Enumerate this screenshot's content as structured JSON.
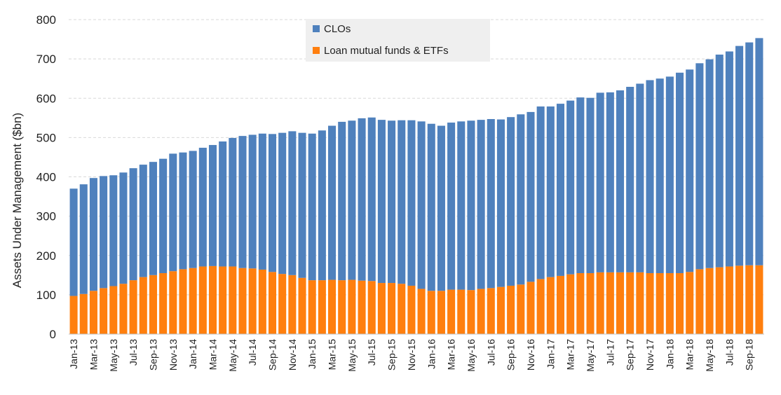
{
  "chart_data": {
    "type": "bar",
    "stacked": true,
    "title": "",
    "xlabel": "",
    "ylabel": "Assets Under Management ($bn)",
    "ylim": [
      0,
      800
    ],
    "yticks": [
      0,
      100,
      200,
      300,
      400,
      500,
      600,
      700,
      800
    ],
    "grid": true,
    "legend_position": "top-center",
    "categories": [
      "Jan-13",
      "Feb-13",
      "Mar-13",
      "Apr-13",
      "May-13",
      "Jun-13",
      "Jul-13",
      "Aug-13",
      "Sep-13",
      "Oct-13",
      "Nov-13",
      "Dec-13",
      "Jan-14",
      "Feb-14",
      "Mar-14",
      "Apr-14",
      "May-14",
      "Jun-14",
      "Jul-14",
      "Aug-14",
      "Sep-14",
      "Oct-14",
      "Nov-14",
      "Dec-14",
      "Jan-15",
      "Feb-15",
      "Mar-15",
      "Apr-15",
      "May-15",
      "Jun-15",
      "Jul-15",
      "Aug-15",
      "Sep-15",
      "Oct-15",
      "Nov-15",
      "Dec-15",
      "Jan-16",
      "Feb-16",
      "Mar-16",
      "Apr-16",
      "May-16",
      "Jun-16",
      "Jul-16",
      "Aug-16",
      "Sep-16",
      "Oct-16",
      "Nov-16",
      "Dec-16",
      "Jan-17",
      "Feb-17",
      "Mar-17",
      "Apr-17",
      "May-17",
      "Jun-17",
      "Jul-17",
      "Aug-17",
      "Sep-17",
      "Oct-17",
      "Nov-17",
      "Dec-17",
      "Jan-18",
      "Feb-18",
      "Mar-18",
      "Apr-18",
      "May-18",
      "Jun-18",
      "Jul-18",
      "Aug-18",
      "Sep-18",
      "Oct-18"
    ],
    "xtick_labels": [
      "Jan-13",
      "Mar-13",
      "May-13",
      "Jul-13",
      "Sep-13",
      "Nov-13",
      "Jan-14",
      "Mar-14",
      "May-14",
      "Jul-14",
      "Sep-14",
      "Nov-14",
      "Jan-15",
      "Mar-15",
      "May-15",
      "Jul-15",
      "Sep-15",
      "Nov-15",
      "Jan-16",
      "Mar-16",
      "May-16",
      "Jul-16",
      "Sep-16",
      "Nov-16",
      "Jan-17",
      "Mar-17",
      "May-17",
      "Jul-17",
      "Sep-17",
      "Nov-17",
      "Jan-18",
      "Mar-18",
      "May-18",
      "Jul-18",
      "Sep-18"
    ],
    "series": [
      {
        "name": "Loan mutual funds & ETFs",
        "color": "#FF7F0E",
        "values": [
          97,
          102,
          110,
          117,
          122,
          128,
          137,
          145,
          150,
          155,
          160,
          165,
          168,
          172,
          173,
          172,
          172,
          168,
          167,
          164,
          158,
          153,
          150,
          143,
          137,
          137,
          138,
          137,
          138,
          136,
          135,
          130,
          130,
          128,
          123,
          115,
          110,
          110,
          113,
          113,
          112,
          115,
          117,
          120,
          123,
          126,
          133,
          140,
          145,
          148,
          152,
          155,
          155,
          157,
          157,
          157,
          157,
          157,
          155,
          155,
          155,
          155,
          158,
          165,
          168,
          170,
          172,
          174,
          175,
          175
        ],
        "totals": [
          370,
          381,
          397,
          402,
          404,
          411,
          422,
          431,
          438,
          446,
          459,
          462,
          466,
          474,
          481,
          490,
          499,
          504,
          507,
          510,
          509,
          512,
          516,
          512,
          510,
          518,
          530,
          540,
          543,
          549,
          551,
          545,
          543,
          544,
          544,
          541,
          535,
          530,
          538,
          541,
          543,
          545,
          547,
          546,
          552,
          559,
          565,
          579,
          579,
          586,
          594,
          602,
          601,
          614,
          615,
          620,
          629,
          637,
          646,
          650,
          655,
          665,
          673,
          689,
          699,
          711,
          719,
          733,
          742,
          753
        ]
      },
      {
        "name": "CLOs",
        "color": "#4F81BD",
        "values": [
          273,
          279,
          287,
          285,
          282,
          283,
          285,
          286,
          288,
          291,
          299,
          297,
          298,
          302,
          308,
          318,
          327,
          336,
          340,
          346,
          351,
          359,
          366,
          369,
          373,
          381,
          392,
          403,
          405,
          413,
          416,
          415,
          413,
          416,
          421,
          426,
          425,
          420,
          425,
          428,
          431,
          430,
          430,
          426,
          429,
          433,
          432,
          439,
          434,
          438,
          442,
          447,
          446,
          457,
          458,
          463,
          472,
          480,
          491,
          495,
          500,
          510,
          515,
          524,
          531,
          541,
          547,
          559,
          567,
          578
        ]
      }
    ]
  }
}
